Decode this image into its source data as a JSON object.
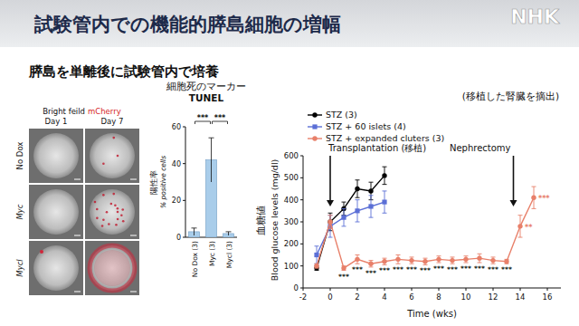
{
  "header": {
    "title": "試験管内での機能的膵島細胞の増幅",
    "subtitle": "膵島を単離後に試験管内で培養",
    "logo": "NHK"
  },
  "image_panel": {
    "channels": [
      "Bright feild",
      "mCherry"
    ],
    "columns": [
      "Day 1",
      "Day 7"
    ],
    "rows": [
      "No Dox",
      "Myc",
      "Mycl"
    ]
  },
  "chart_data": [
    {
      "type": "bar",
      "title": "細胞死のマーカー",
      "subtitle": "TUNEL",
      "ylabel": "% positive cells",
      "ylabel_ja": "陽性率",
      "categories": [
        "No Dox (3)",
        "Myc (3)",
        "Mycl (3)"
      ],
      "values": [
        3,
        42,
        2
      ],
      "errors": [
        2,
        12,
        1
      ],
      "color": "#a9cdea",
      "ylim": [
        0,
        60
      ],
      "yticks": [
        0,
        20,
        40,
        60
      ],
      "grid": false,
      "comparisons": [
        {
          "pair": [
            0,
            1
          ],
          "label": "***"
        },
        {
          "pair": [
            1,
            2
          ],
          "label": "***"
        }
      ]
    },
    {
      "type": "line",
      "xlabel": "Time (wks)",
      "ylabel": "Blood glucose levels (mg/dl)",
      "ylabel_ja": "血糖値",
      "xlim": [
        -2,
        17
      ],
      "xticks": [
        -2,
        0,
        2,
        4,
        6,
        8,
        10,
        12,
        14,
        16
      ],
      "ylim": [
        0,
        600
      ],
      "yticks": [
        0,
        100,
        200,
        300,
        400,
        500,
        600
      ],
      "grid": false,
      "legend": "top-left",
      "series": [
        {
          "name": "STZ (3)",
          "color": "#000000",
          "marker": "circle",
          "x": [
            -1,
            0,
            1,
            2,
            3,
            4
          ],
          "values": [
            90,
            300,
            360,
            450,
            440,
            510
          ],
          "errors": [
            10,
            40,
            30,
            40,
            40,
            40
          ]
        },
        {
          "name": "STZ + 60 islets (4)",
          "color": "#5b6fd6",
          "marker": "square",
          "x": [
            -1,
            0,
            1,
            2,
            3,
            4
          ],
          "values": [
            150,
            280,
            320,
            350,
            370,
            390
          ],
          "errors": [
            40,
            50,
            40,
            50,
            50,
            50
          ]
        },
        {
          "name": "STZ + expanded cluters (3)",
          "color": "#e8806a",
          "marker": "circle",
          "x": [
            -1,
            0,
            1,
            2,
            3,
            4,
            5,
            6,
            7,
            8,
            9,
            10,
            11,
            12,
            13,
            14,
            15
          ],
          "values": [
            100,
            300,
            90,
            130,
            110,
            120,
            130,
            125,
            120,
            130,
            125,
            130,
            135,
            125,
            120,
            280,
            410
          ],
          "errors": [
            10,
            30,
            10,
            20,
            15,
            15,
            20,
            15,
            15,
            15,
            15,
            15,
            20,
            15,
            10,
            50,
            50
          ],
          "significance": [
            null,
            null,
            "***",
            "***",
            "***",
            "***",
            "***",
            "***",
            "***",
            "***",
            "***",
            "***",
            "***",
            "***",
            "***",
            "**",
            "***"
          ]
        }
      ],
      "annotations": [
        {
          "x": 0,
          "text": [
            "Transplantation (移植)"
          ]
        },
        {
          "x": 13.5,
          "text": [
            "(移植した腎臓を摘出)",
            "Nephrectomy"
          ]
        }
      ]
    }
  ]
}
